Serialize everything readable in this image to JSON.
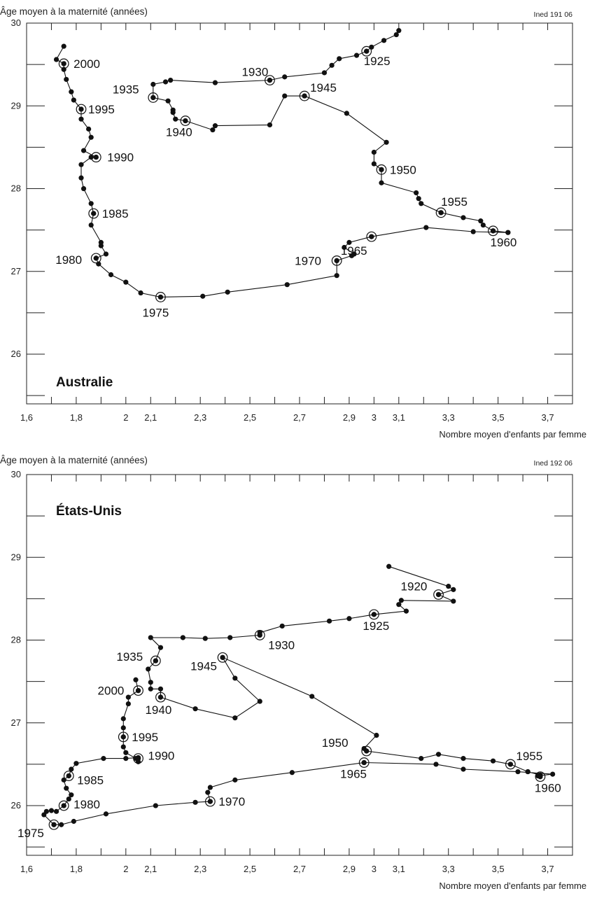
{
  "chart_data": [
    {
      "type": "line",
      "country": "Australie",
      "source": "Ined 191 06",
      "ylabel": "Âge moyen à la maternité (années)",
      "xlabel": "Nombre moyen d'enfants par femme",
      "xlim": [
        1.6,
        3.8
      ],
      "ylim": [
        25.4,
        30
      ],
      "x_ticks": [
        "1,6",
        "1,8",
        "2",
        "2,1",
        "2,3",
        "2,5",
        "2,7",
        "2,9",
        "3",
        "3,1",
        "3,3",
        "3,5",
        "3,7"
      ],
      "x_tick_values": [
        1.6,
        1.8,
        2.0,
        2.1,
        2.3,
        2.5,
        2.7,
        2.9,
        3.0,
        3.1,
        3.3,
        3.5,
        3.7
      ],
      "y_ticks": [
        "26",
        "27",
        "28",
        "29",
        "30"
      ],
      "y_tick_values": [
        26,
        27,
        28,
        29,
        30
      ],
      "points": [
        [
          3.1,
          29.91
        ],
        [
          3.09,
          29.86
        ],
        [
          3.04,
          29.79
        ],
        [
          2.99,
          29.71
        ],
        [
          2.97,
          29.66
        ],
        [
          2.93,
          29.61
        ],
        [
          2.86,
          29.57
        ],
        [
          2.83,
          29.49
        ],
        [
          2.8,
          29.4
        ],
        [
          2.64,
          29.35
        ],
        [
          2.58,
          29.31
        ],
        [
          2.36,
          29.28
        ],
        [
          2.18,
          29.31
        ],
        [
          2.16,
          29.29
        ],
        [
          2.11,
          29.26
        ],
        [
          2.11,
          29.1
        ],
        [
          2.17,
          29.06
        ],
        [
          2.19,
          28.95
        ],
        [
          2.19,
          28.92
        ],
        [
          2.2,
          28.84
        ],
        [
          2.24,
          28.82
        ],
        [
          2.35,
          28.71
        ],
        [
          2.36,
          28.76
        ],
        [
          2.58,
          28.77
        ],
        [
          2.64,
          29.12
        ],
        [
          2.72,
          29.12
        ],
        [
          2.89,
          28.91
        ],
        [
          3.05,
          28.56
        ],
        [
          3.0,
          28.44
        ],
        [
          3.0,
          28.3
        ],
        [
          3.03,
          28.23
        ],
        [
          3.03,
          28.07
        ],
        [
          3.17,
          27.95
        ],
        [
          3.18,
          27.88
        ],
        [
          3.19,
          27.82
        ],
        [
          3.27,
          27.71
        ],
        [
          3.36,
          27.65
        ],
        [
          3.43,
          27.61
        ],
        [
          3.44,
          27.56
        ],
        [
          3.48,
          27.49
        ],
        [
          3.48,
          27.49
        ],
        [
          3.54,
          27.47
        ],
        [
          3.54,
          27.47
        ],
        [
          3.4,
          27.48
        ],
        [
          3.21,
          27.53
        ],
        [
          2.99,
          27.42
        ],
        [
          2.9,
          27.35
        ],
        [
          2.88,
          27.29
        ],
        [
          2.92,
          27.21
        ],
        [
          2.91,
          27.19
        ],
        [
          2.85,
          27.13
        ],
        [
          2.85,
          26.95
        ],
        [
          2.65,
          26.84
        ],
        [
          2.41,
          26.75
        ],
        [
          2.31,
          26.7
        ],
        [
          2.14,
          26.69
        ],
        [
          2.06,
          26.74
        ],
        [
          2.0,
          26.87
        ],
        [
          1.94,
          26.96
        ],
        [
          1.89,
          27.09
        ],
        [
          1.88,
          27.16
        ],
        [
          1.92,
          27.21
        ],
        [
          1.9,
          27.31
        ],
        [
          1.9,
          27.35
        ],
        [
          1.86,
          27.56
        ],
        [
          1.87,
          27.7
        ],
        [
          1.86,
          27.82
        ],
        [
          1.83,
          28.0
        ],
        [
          1.82,
          28.13
        ],
        [
          1.82,
          28.29
        ],
        [
          1.86,
          28.38
        ],
        [
          1.88,
          28.38
        ],
        [
          1.83,
          28.46
        ],
        [
          1.86,
          28.62
        ],
        [
          1.85,
          28.72
        ],
        [
          1.82,
          28.84
        ],
        [
          1.82,
          28.96
        ],
        [
          1.79,
          29.07
        ],
        [
          1.78,
          29.17
        ],
        [
          1.76,
          29.32
        ],
        [
          1.75,
          29.44
        ],
        [
          1.75,
          29.51
        ],
        [
          1.72,
          29.56
        ],
        [
          1.75,
          29.72
        ]
      ],
      "year_markers": [
        {
          "label": "1925",
          "x": 2.97,
          "y": 29.66
        },
        {
          "label": "1930",
          "x": 2.58,
          "y": 29.31
        },
        {
          "label": "1935",
          "x": 2.11,
          "y": 29.1
        },
        {
          "label": "1940",
          "x": 2.24,
          "y": 28.82
        },
        {
          "label": "1945",
          "x": 2.72,
          "y": 29.12
        },
        {
          "label": "1950",
          "x": 3.03,
          "y": 28.23
        },
        {
          "label": "1955",
          "x": 3.27,
          "y": 27.71
        },
        {
          "label": "1960",
          "x": 3.48,
          "y": 27.49
        },
        {
          "label": "1965",
          "x": 2.99,
          "y": 27.42
        },
        {
          "label": "1970",
          "x": 2.85,
          "y": 27.13
        },
        {
          "label": "1975",
          "x": 2.14,
          "y": 26.69
        },
        {
          "label": "1980",
          "x": 1.88,
          "y": 27.16
        },
        {
          "label": "1985",
          "x": 1.87,
          "y": 27.7
        },
        {
          "label": "1990",
          "x": 1.88,
          "y": 28.38
        },
        {
          "label": "1995",
          "x": 1.82,
          "y": 28.96
        },
        {
          "label": "2000",
          "x": 1.75,
          "y": 29.51
        }
      ]
    },
    {
      "type": "line",
      "country": "États-Unis",
      "source": "Ined 192 06",
      "ylabel": "Âge moyen à la maternité (années)",
      "xlabel": "Nombre moyen d'enfants par femme",
      "xlim": [
        1.6,
        3.8
      ],
      "ylim": [
        25.4,
        30
      ],
      "x_ticks": [
        "1,6",
        "1,8",
        "2",
        "2,1",
        "2,3",
        "2,5",
        "2,7",
        "2,9",
        "3",
        "3,1",
        "3,3",
        "3,5",
        "3,7"
      ],
      "x_tick_values": [
        1.6,
        1.8,
        2.0,
        2.1,
        2.3,
        2.5,
        2.7,
        2.9,
        3.0,
        3.1,
        3.3,
        3.5,
        3.7
      ],
      "y_ticks": [
        "26",
        "27",
        "28",
        "29",
        "30"
      ],
      "y_tick_values": [
        26,
        27,
        28,
        29,
        30
      ],
      "points": [
        [
          3.06,
          28.89
        ],
        [
          3.3,
          28.65
        ],
        [
          3.32,
          28.61
        ],
        [
          3.26,
          28.55
        ],
        [
          3.32,
          28.47
        ],
        [
          3.11,
          28.48
        ],
        [
          3.1,
          28.43
        ],
        [
          3.13,
          28.35
        ],
        [
          3.0,
          28.31
        ],
        [
          2.9,
          28.26
        ],
        [
          2.82,
          28.23
        ],
        [
          2.63,
          28.17
        ],
        [
          2.54,
          28.09
        ],
        [
          2.54,
          28.06
        ],
        [
          2.42,
          28.03
        ],
        [
          2.32,
          28.02
        ],
        [
          2.23,
          28.03
        ],
        [
          2.1,
          28.03
        ],
        [
          2.14,
          27.91
        ],
        [
          2.12,
          27.75
        ],
        [
          2.09,
          27.65
        ],
        [
          2.1,
          27.49
        ],
        [
          2.1,
          27.41
        ],
        [
          2.14,
          27.41
        ],
        [
          2.14,
          27.31
        ],
        [
          2.28,
          27.17
        ],
        [
          2.44,
          27.06
        ],
        [
          2.54,
          27.26
        ],
        [
          2.44,
          27.54
        ],
        [
          2.39,
          27.79
        ],
        [
          2.75,
          27.32
        ],
        [
          3.01,
          26.85
        ],
        [
          2.96,
          26.69
        ],
        [
          2.97,
          26.66
        ],
        [
          3.19,
          26.57
        ],
        [
          3.26,
          26.62
        ],
        [
          3.36,
          26.57
        ],
        [
          3.48,
          26.54
        ],
        [
          3.55,
          26.5
        ],
        [
          3.62,
          26.41
        ],
        [
          3.62,
          26.41
        ],
        [
          3.67,
          26.37
        ],
        [
          3.67,
          26.35
        ],
        [
          3.66,
          26.36
        ],
        [
          3.72,
          26.38
        ],
        [
          3.58,
          26.41
        ],
        [
          3.36,
          26.44
        ],
        [
          3.25,
          26.5
        ],
        [
          2.96,
          26.52
        ],
        [
          2.67,
          26.4
        ],
        [
          2.44,
          26.31
        ],
        [
          2.34,
          26.22
        ],
        [
          2.33,
          26.16
        ],
        [
          2.34,
          26.05
        ],
        [
          2.28,
          26.04
        ],
        [
          2.12,
          26.0
        ],
        [
          1.92,
          25.9
        ],
        [
          1.79,
          25.81
        ],
        [
          1.74,
          25.77
        ],
        [
          1.71,
          25.77
        ],
        [
          1.67,
          25.89
        ],
        [
          1.68,
          25.93
        ],
        [
          1.7,
          25.94
        ],
        [
          1.72,
          25.93
        ],
        [
          1.75,
          26.0
        ],
        [
          1.77,
          26.08
        ],
        [
          1.78,
          26.13
        ],
        [
          1.76,
          26.21
        ],
        [
          1.75,
          26.31
        ],
        [
          1.77,
          26.36
        ],
        [
          1.78,
          26.44
        ],
        [
          1.8,
          26.51
        ],
        [
          1.91,
          26.57
        ],
        [
          2.0,
          26.57
        ],
        [
          2.05,
          26.58
        ],
        [
          2.05,
          26.53
        ],
        [
          2.05,
          26.57
        ],
        [
          2.04,
          26.57
        ],
        [
          2.0,
          26.64
        ],
        [
          1.99,
          26.71
        ],
        [
          1.99,
          26.83
        ],
        [
          1.99,
          26.94
        ],
        [
          1.99,
          27.05
        ],
        [
          2.01,
          27.23
        ],
        [
          2.01,
          27.31
        ],
        [
          2.05,
          27.39
        ],
        [
          2.04,
          27.52
        ]
      ],
      "year_markers": [
        {
          "label": "1920",
          "x": 3.26,
          "y": 28.55
        },
        {
          "label": "1925",
          "x": 3.0,
          "y": 28.31
        },
        {
          "label": "1930",
          "x": 2.54,
          "y": 28.06
        },
        {
          "label": "1935",
          "x": 2.12,
          "y": 27.75
        },
        {
          "label": "1940",
          "x": 2.14,
          "y": 27.31
        },
        {
          "label": "1945",
          "x": 2.39,
          "y": 27.79
        },
        {
          "label": "1950",
          "x": 2.97,
          "y": 26.66
        },
        {
          "label": "1955",
          "x": 3.55,
          "y": 26.5
        },
        {
          "label": "1960",
          "x": 3.67,
          "y": 26.35
        },
        {
          "label": "1965",
          "x": 2.96,
          "y": 26.52
        },
        {
          "label": "1970",
          "x": 2.34,
          "y": 26.05
        },
        {
          "label": "1975",
          "x": 1.71,
          "y": 25.77
        },
        {
          "label": "1980",
          "x": 1.75,
          "y": 26.0
        },
        {
          "label": "1985",
          "x": 1.77,
          "y": 26.36
        },
        {
          "label": "1990",
          "x": 2.05,
          "y": 26.57
        },
        {
          "label": "1995",
          "x": 1.99,
          "y": 26.83
        },
        {
          "label": "2000",
          "x": 2.05,
          "y": 27.39
        }
      ]
    }
  ]
}
